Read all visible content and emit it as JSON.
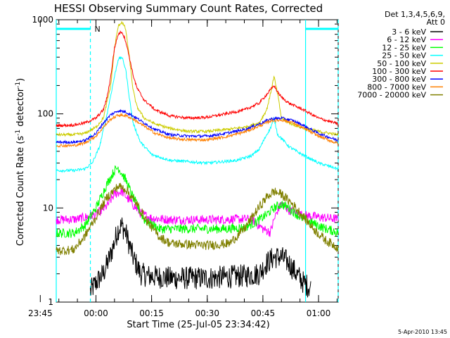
{
  "chart_data": {
    "type": "line",
    "title": "HESSI Observing Summary Count Rates, Corrected",
    "xlabel": "Start Time (25-Jul-05 23:34:42)",
    "ylabel_main": "Corrected Count Rate (s",
    "ylabel_sup1": "-1",
    "ylabel_mid": " detector",
    "ylabel_sup2": "-1",
    "ylabel_end": ")",
    "y_scale": "log",
    "ylim": [
      1,
      1000
    ],
    "xlim_minutes": [
      -10.7,
      65.3
    ],
    "y_ticks": [
      {
        "value": 1,
        "label": "1"
      },
      {
        "value": 10,
        "label": "10"
      },
      {
        "value": 100,
        "label": "100"
      },
      {
        "value": 1000,
        "label": "1000"
      }
    ],
    "x_ticks": [
      {
        "minute": -15,
        "label": "23:45"
      },
      {
        "minute": 0,
        "label": "00:00"
      },
      {
        "minute": 15,
        "label": "00:15"
      },
      {
        "minute": 30,
        "label": "00:30"
      },
      {
        "minute": 45,
        "label": "00:45"
      },
      {
        "minute": 60,
        "label": "01:00"
      }
    ],
    "legend_header": [
      "Det 1,3,4,5,6,9,",
      "Att 0"
    ],
    "legend_position": "right",
    "night_marker": {
      "label": "N",
      "spans_minutes": [
        [
          -10.7,
          -1.5
        ],
        [
          56.5,
          65.3
        ]
      ]
    },
    "marker_lines": [
      {
        "minute": -10.7,
        "style": "solid"
      },
      {
        "minute": -1.5,
        "style": "dashed"
      },
      {
        "minute": 56.5,
        "style": "solid"
      },
      {
        "minute": 65.3,
        "style": "dashed"
      }
    ],
    "series": [
      {
        "name": "3 - 6 keV",
        "color": "#000000",
        "points": [
          [
            -1.5,
            1.3
          ],
          [
            0,
            1.6
          ],
          [
            2,
            2.0
          ],
          [
            4,
            3.2
          ],
          [
            6,
            6.0
          ],
          [
            7,
            6.5
          ],
          [
            8,
            5.5
          ],
          [
            10,
            3.0
          ],
          [
            12,
            2.0
          ],
          [
            14,
            1.9
          ],
          [
            20,
            1.8
          ],
          [
            30,
            1.8
          ],
          [
            40,
            1.9
          ],
          [
            44,
            2.0
          ],
          [
            46,
            2.6
          ],
          [
            48,
            3.0
          ],
          [
            50,
            3.0
          ],
          [
            52,
            2.6
          ],
          [
            54,
            2.0
          ],
          [
            56,
            1.6
          ],
          [
            58,
            1.4
          ]
        ]
      },
      {
        "name": "6 - 12 keV",
        "color": "#ff00ff",
        "points": [
          [
            -10.7,
            7.5
          ],
          [
            -5,
            7.6
          ],
          [
            0,
            8.5
          ],
          [
            3,
            10.5
          ],
          [
            5,
            14
          ],
          [
            7,
            15
          ],
          [
            9,
            12
          ],
          [
            12,
            8.8
          ],
          [
            15,
            7.8
          ],
          [
            20,
            7.5
          ],
          [
            30,
            7.5
          ],
          [
            38,
            7.6
          ],
          [
            42,
            7.6
          ],
          [
            45,
            6.0
          ],
          [
            47,
            5.5
          ],
          [
            48,
            7.5
          ],
          [
            49,
            9.5
          ],
          [
            50,
            11
          ],
          [
            52,
            9.5
          ],
          [
            55,
            8.5
          ],
          [
            60,
            8.0
          ],
          [
            65.3,
            7.6
          ]
        ]
      },
      {
        "name": "12 - 25 keV",
        "color": "#00ff00",
        "points": [
          [
            -10.7,
            5.4
          ],
          [
            -6,
            5.4
          ],
          [
            -3,
            6.5
          ],
          [
            0,
            10
          ],
          [
            3,
            18
          ],
          [
            5,
            25
          ],
          [
            6,
            27
          ],
          [
            8,
            20
          ],
          [
            10,
            13
          ],
          [
            13,
            7.5
          ],
          [
            17,
            6.0
          ],
          [
            25,
            6.0
          ],
          [
            35,
            6.0
          ],
          [
            40,
            6.2
          ],
          [
            43,
            7.0
          ],
          [
            46,
            8.5
          ],
          [
            48,
            10
          ],
          [
            50,
            11
          ],
          [
            52,
            10
          ],
          [
            55,
            8.0
          ],
          [
            58,
            7.0
          ],
          [
            62,
            6.0
          ],
          [
            65.3,
            5.5
          ]
        ]
      },
      {
        "name": "25 - 50 keV",
        "color": "#00ffff",
        "points": [
          [
            -10.7,
            25
          ],
          [
            -6,
            25
          ],
          [
            -3,
            26
          ],
          [
            -1,
            30
          ],
          [
            1,
            45
          ],
          [
            3,
            100
          ],
          [
            5,
            250
          ],
          [
            6,
            380
          ],
          [
            7,
            400
          ],
          [
            8,
            300
          ],
          [
            9,
            150
          ],
          [
            10,
            80
          ],
          [
            12,
            50
          ],
          [
            15,
            37
          ],
          [
            20,
            32
          ],
          [
            30,
            30
          ],
          [
            38,
            32
          ],
          [
            42,
            36
          ],
          [
            44,
            42
          ],
          [
            46,
            60
          ],
          [
            47,
            70
          ],
          [
            48,
            90
          ],
          [
            49,
            60
          ],
          [
            50,
            55
          ],
          [
            52,
            45
          ],
          [
            55,
            38
          ],
          [
            60,
            30
          ],
          [
            65.3,
            26
          ]
        ]
      },
      {
        "name": "50 - 100 keV",
        "color": "#cccc00",
        "points": [
          [
            -10.7,
            60
          ],
          [
            -6,
            60
          ],
          [
            -3,
            62
          ],
          [
            0,
            72
          ],
          [
            2,
            90
          ],
          [
            4,
            200
          ],
          [
            5,
            500
          ],
          [
            6,
            850
          ],
          [
            7,
            950
          ],
          [
            8,
            800
          ],
          [
            9,
            400
          ],
          [
            10,
            180
          ],
          [
            11,
            120
          ],
          [
            13,
            90
          ],
          [
            16,
            78
          ],
          [
            20,
            70
          ],
          [
            25,
            65
          ],
          [
            30,
            65
          ],
          [
            35,
            68
          ],
          [
            40,
            72
          ],
          [
            44,
            80
          ],
          [
            46,
            110
          ],
          [
            47,
            160
          ],
          [
            48,
            250
          ],
          [
            49,
            160
          ],
          [
            50,
            90
          ],
          [
            52,
            80
          ],
          [
            56,
            70
          ],
          [
            60,
            65
          ],
          [
            65.3,
            60
          ]
        ]
      },
      {
        "name": "100 - 300 keV",
        "color": "#ff0000",
        "points": [
          [
            -10.7,
            75
          ],
          [
            -6,
            76
          ],
          [
            -3,
            80
          ],
          [
            0,
            90
          ],
          [
            2,
            110
          ],
          [
            3,
            150
          ],
          [
            4,
            250
          ],
          [
            5,
            500
          ],
          [
            6,
            700
          ],
          [
            7,
            750
          ],
          [
            8,
            600
          ],
          [
            9,
            400
          ],
          [
            10,
            260
          ],
          [
            11,
            190
          ],
          [
            13,
            140
          ],
          [
            16,
            110
          ],
          [
            20,
            95
          ],
          [
            25,
            90
          ],
          [
            30,
            92
          ],
          [
            35,
            100
          ],
          [
            40,
            110
          ],
          [
            44,
            130
          ],
          [
            46,
            160
          ],
          [
            48,
            200
          ],
          [
            49,
            170
          ],
          [
            50,
            150
          ],
          [
            52,
            130
          ],
          [
            56,
            110
          ],
          [
            60,
            90
          ],
          [
            65.3,
            78
          ]
        ]
      },
      {
        "name": "300 - 800 keV",
        "color": "#0000ff",
        "points": [
          [
            -10.7,
            50
          ],
          [
            -6,
            50
          ],
          [
            -3,
            52
          ],
          [
            0,
            62
          ],
          [
            2,
            80
          ],
          [
            4,
            98
          ],
          [
            6,
            108
          ],
          [
            8,
            105
          ],
          [
            10,
            95
          ],
          [
            13,
            80
          ],
          [
            16,
            68
          ],
          [
            20,
            60
          ],
          [
            25,
            58
          ],
          [
            30,
            58
          ],
          [
            35,
            62
          ],
          [
            40,
            68
          ],
          [
            44,
            78
          ],
          [
            47,
            88
          ],
          [
            50,
            90
          ],
          [
            53,
            85
          ],
          [
            56,
            75
          ],
          [
            60,
            62
          ],
          [
            65.3,
            52
          ]
        ]
      },
      {
        "name": "800 - 7000 keV",
        "color": "#ff8000",
        "points": [
          [
            -10.7,
            46
          ],
          [
            -6,
            46
          ],
          [
            -3,
            49
          ],
          [
            0,
            58
          ],
          [
            2,
            72
          ],
          [
            4,
            88
          ],
          [
            6,
            97
          ],
          [
            8,
            96
          ],
          [
            10,
            88
          ],
          [
            13,
            74
          ],
          [
            16,
            62
          ],
          [
            20,
            55
          ],
          [
            25,
            53
          ],
          [
            30,
            53
          ],
          [
            35,
            57
          ],
          [
            40,
            64
          ],
          [
            44,
            74
          ],
          [
            47,
            84
          ],
          [
            50,
            86
          ],
          [
            53,
            81
          ],
          [
            56,
            70
          ],
          [
            60,
            58
          ],
          [
            65.3,
            48
          ]
        ]
      },
      {
        "name": "7000 - 20000 keV",
        "color": "#808000",
        "points": [
          [
            -10.7,
            3.5
          ],
          [
            -6,
            3.6
          ],
          [
            -3,
            5.0
          ],
          [
            0,
            8.0
          ],
          [
            3,
            13
          ],
          [
            6,
            17
          ],
          [
            8,
            16
          ],
          [
            11,
            11
          ],
          [
            14,
            7.0
          ],
          [
            17,
            5.0
          ],
          [
            20,
            4.2
          ],
          [
            30,
            4.0
          ],
          [
            36,
            4.2
          ],
          [
            40,
            6.0
          ],
          [
            43,
            9.0
          ],
          [
            46,
            13
          ],
          [
            48,
            15
          ],
          [
            50,
            14
          ],
          [
            53,
            11
          ],
          [
            56,
            8.0
          ],
          [
            59,
            5.8
          ],
          [
            62,
            4.5
          ],
          [
            65.3,
            3.8
          ]
        ]
      }
    ]
  },
  "timestamp": "5-Apr-2010 13:45"
}
